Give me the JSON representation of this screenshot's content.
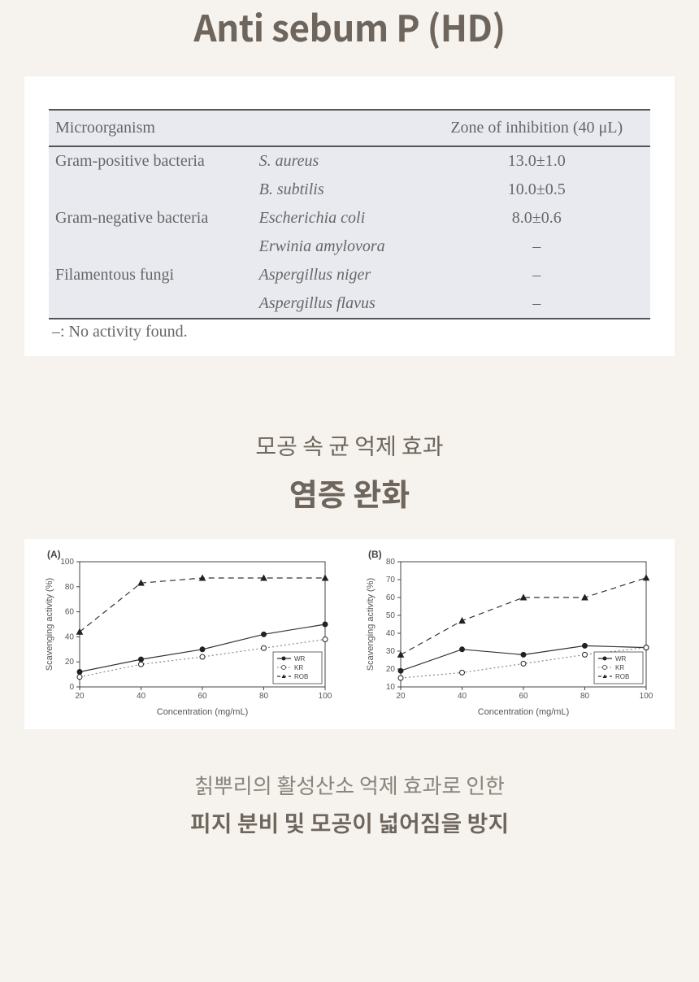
{
  "header": {
    "title": "Anti sebum P (HD)"
  },
  "table": {
    "columns": [
      "Microorganism",
      "",
      "Zone of inhibition (40 μL)"
    ],
    "rows": [
      {
        "group": "Gram-positive bacteria",
        "organism": "S. aureus",
        "value": "13.0±1.0"
      },
      {
        "group": "",
        "organism": "B. subtilis",
        "value": "10.0±0.5"
      },
      {
        "group": "Gram-negative bacteria",
        "organism": "Escherichia coli",
        "value": "8.0±0.6"
      },
      {
        "group": "",
        "organism": "Erwinia amylovora",
        "value": "–"
      },
      {
        "group": "Filamentous fungi",
        "organism": "Aspergillus niger",
        "value": "–"
      },
      {
        "group": "",
        "organism": "Aspergillus flavus",
        "value": "–"
      }
    ],
    "note": "–: No activity found.",
    "colors": {
      "header_bg": "#e9eaf0",
      "body_bg": "#e9eaf0",
      "border": "#555555",
      "text": "#666666"
    },
    "font_family": "Georgia, serif",
    "font_size": 20
  },
  "section2": {
    "sub": "모공 속 균 억제 효과",
    "main": "염증 완화"
  },
  "charts": {
    "panelA": {
      "label": "(A)",
      "type": "line",
      "xlabel": "Concentration (mg/mL)",
      "ylabel": "Scavenging activity (%)",
      "xlim": [
        20,
        100
      ],
      "xticks": [
        20,
        40,
        60,
        80,
        100
      ],
      "ylim": [
        0,
        100
      ],
      "yticks": [
        0,
        20,
        40,
        60,
        80,
        100
      ],
      "series": [
        {
          "name": "WR",
          "marker": "circle_filled",
          "dash": "solid",
          "color": "#333333",
          "x": [
            20,
            40,
            60,
            80,
            100
          ],
          "y": [
            12,
            22,
            30,
            42,
            50
          ]
        },
        {
          "name": "KR",
          "marker": "circle_open",
          "dash": "dotted",
          "color": "#888888",
          "x": [
            20,
            40,
            60,
            80,
            100
          ],
          "y": [
            8,
            18,
            24,
            31,
            38
          ]
        },
        {
          "name": "ROB",
          "marker": "triangle_filled",
          "dash": "dashed",
          "color": "#333333",
          "x": [
            20,
            40,
            60,
            80,
            100
          ],
          "y": [
            44,
            83,
            87,
            87,
            87
          ]
        }
      ],
      "legend_pos": "bottom-right",
      "axis_color": "#444444",
      "label_fontsize": 11,
      "tick_fontsize": 10
    },
    "panelB": {
      "label": "(B)",
      "type": "line",
      "xlabel": "Concentration (mg/mL)",
      "ylabel": "Scavenging activity (%)",
      "xlim": [
        20,
        100
      ],
      "xticks": [
        20,
        40,
        60,
        80,
        100
      ],
      "ylim": [
        10,
        80
      ],
      "yticks": [
        10,
        20,
        30,
        40,
        50,
        60,
        70,
        80
      ],
      "series": [
        {
          "name": "WR",
          "marker": "circle_filled",
          "dash": "solid",
          "color": "#333333",
          "x": [
            20,
            40,
            60,
            80,
            100
          ],
          "y": [
            19,
            31,
            28,
            33,
            32
          ]
        },
        {
          "name": "KR",
          "marker": "circle_open",
          "dash": "dotted",
          "color": "#888888",
          "x": [
            20,
            40,
            60,
            80,
            100
          ],
          "y": [
            15,
            18,
            23,
            28,
            32
          ]
        },
        {
          "name": "ROB",
          "marker": "triangle_filled",
          "dash": "dashed",
          "color": "#333333",
          "x": [
            20,
            40,
            60,
            80,
            100
          ],
          "y": [
            28,
            47,
            60,
            60,
            71
          ]
        }
      ],
      "legend_pos": "bottom-right",
      "axis_color": "#444444",
      "label_fontsize": 11,
      "tick_fontsize": 10
    }
  },
  "footer": {
    "line1": "칡뿌리의 활성산소 억제 효과로 인한",
    "line2": "피지 분비 및 모공이 넓어짐을 방지"
  },
  "palette": {
    "page_bg": "#f6f2ed",
    "card_bg": "#ffffff",
    "heading_color": "#6e665d",
    "subtext_color": "#8a847b"
  }
}
